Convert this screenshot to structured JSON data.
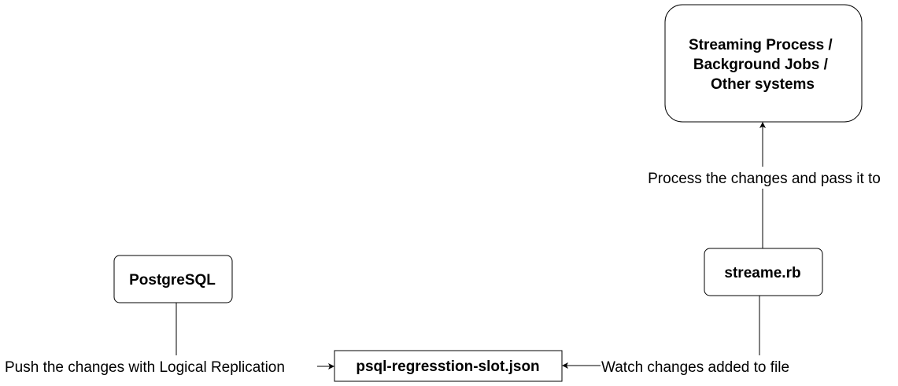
{
  "nodes": {
    "streaming": {
      "lines": [
        "Streaming Process /",
        "Background Jobs /",
        "Other systems"
      ]
    },
    "postgres": {
      "label": "PostgreSQL"
    },
    "streamer": {
      "label": "streame.rb"
    },
    "slot_file": {
      "label": "psql-regresstion-slot.json"
    }
  },
  "edges": {
    "push": {
      "label": "Push the changes with Logical Replication"
    },
    "watch": {
      "label": "Watch changes added to file"
    },
    "process": {
      "label": "Process the changes and pass it to"
    }
  },
  "colors": {
    "stroke": "#000000",
    "fill": "#ffffff",
    "text": "#000000"
  }
}
